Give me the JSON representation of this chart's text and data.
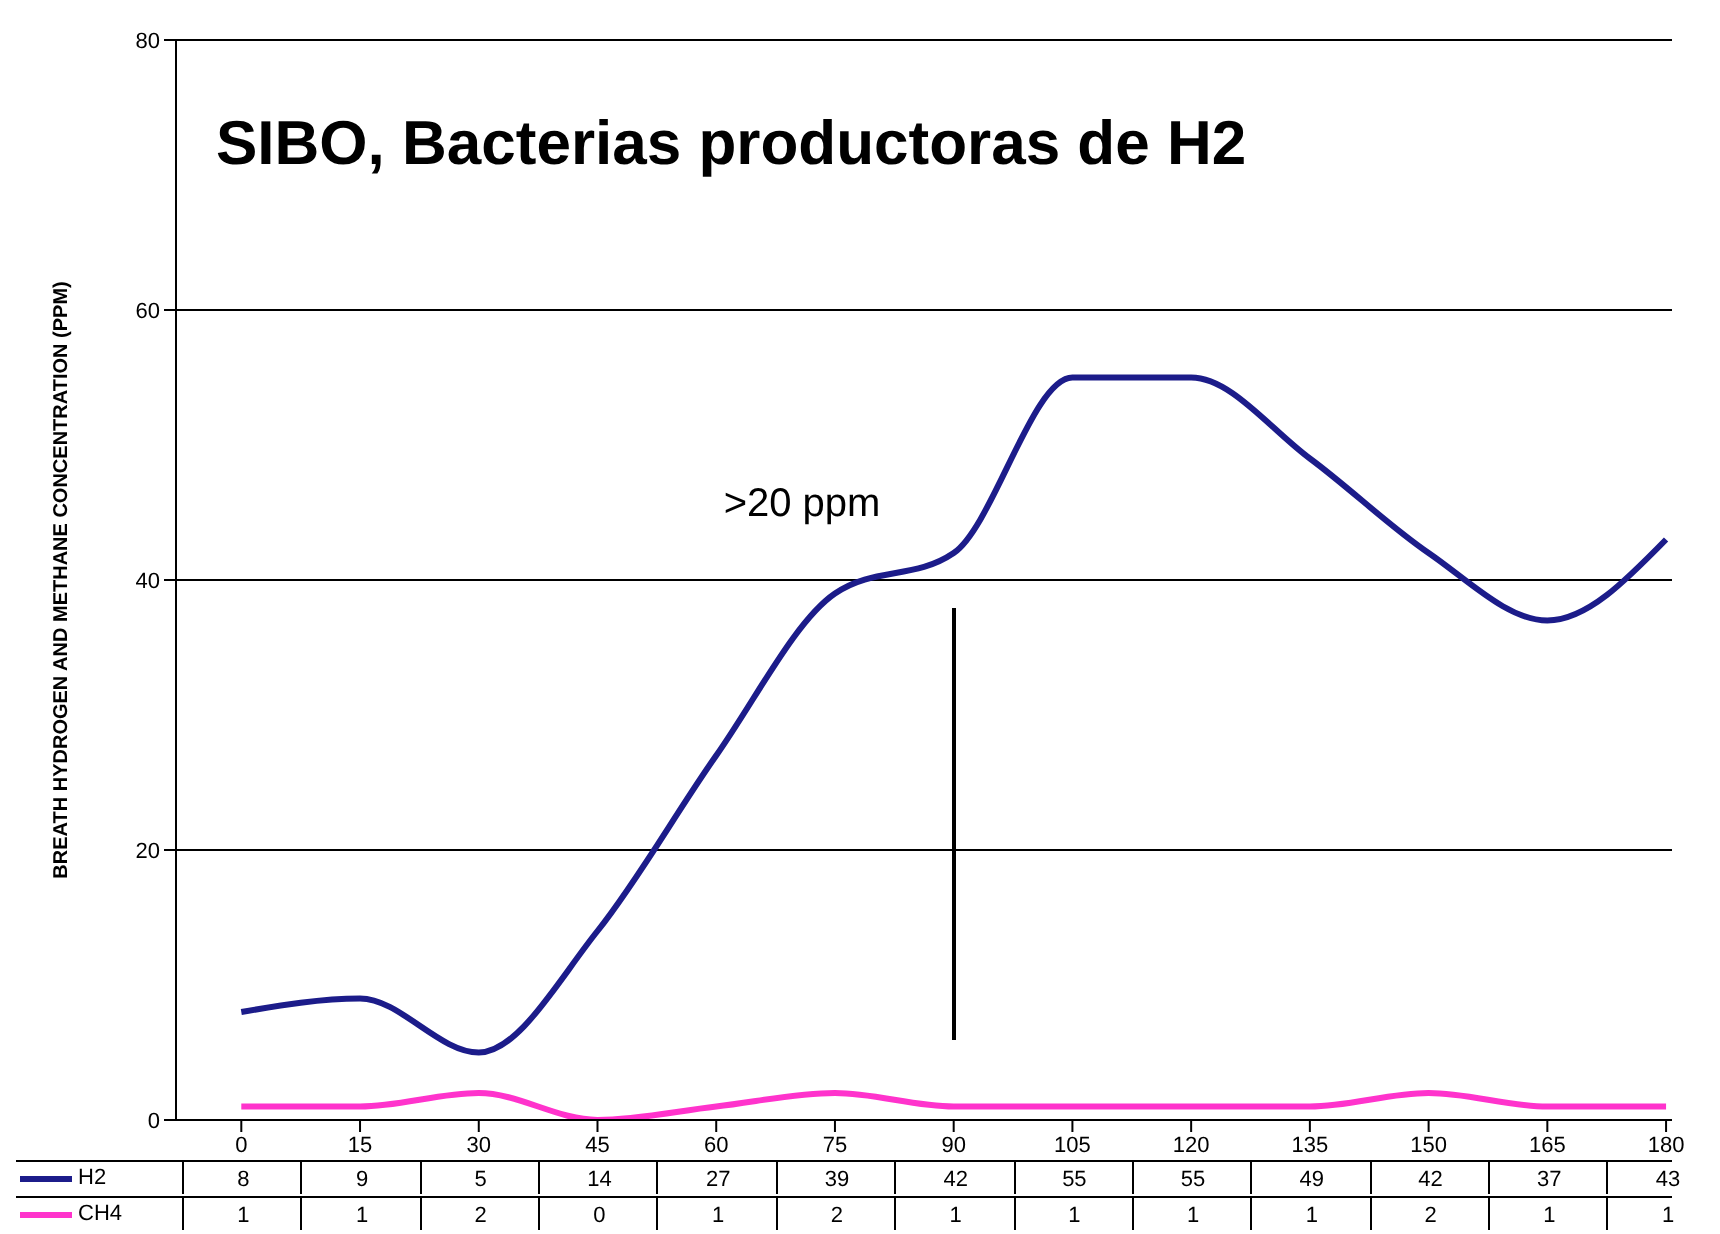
{
  "chart_data": {
    "type": "line",
    "title": "SIBO, Bacterias productoras de H2",
    "ylabel": "BREATH HYDROGEN AND METHANE CONCENTRATION (PPM)",
    "categories": [
      "0",
      "15",
      "30",
      "45",
      "60",
      "75",
      "90",
      "105",
      "120",
      "135",
      "150",
      "165",
      "180"
    ],
    "series": [
      {
        "name": "H2",
        "color": "#1c1c8a",
        "values": [
          8,
          9,
          5,
          14,
          27,
          39,
          42,
          55,
          55,
          49,
          42,
          37,
          43
        ]
      },
      {
        "name": "CH4",
        "color": "#ff33cc",
        "values": [
          1,
          1,
          2,
          0,
          1,
          2,
          1,
          1,
          1,
          1,
          2,
          1,
          1
        ]
      }
    ],
    "ylim": [
      0,
      80
    ],
    "yticks": [
      0,
      20,
      40,
      60,
      80
    ],
    "grid": "y",
    "legend": "bottom",
    "data_labels": true,
    "marker": "none",
    "line_style": "solid",
    "annotations": [
      ">20 ppm"
    ]
  }
}
